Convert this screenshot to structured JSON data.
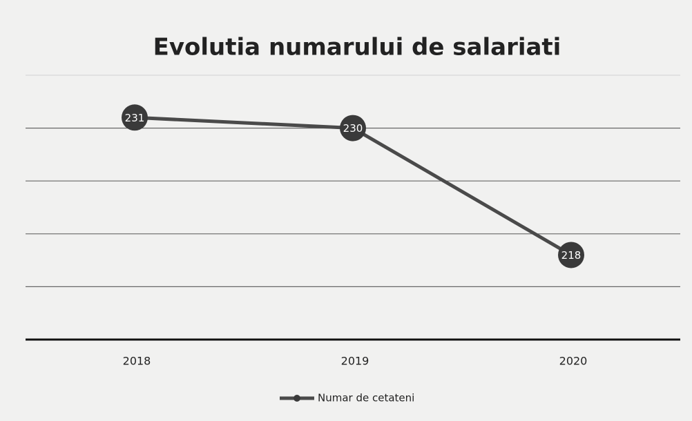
{
  "chart_data": {
    "type": "line",
    "title": "Evolutia numarului de salariati",
    "categories": [
      "2018",
      "2019",
      "2020"
    ],
    "series": [
      {
        "name": "Numar de cetateni",
        "color": "#4a4a4a",
        "values": [
          231,
          230,
          218
        ]
      }
    ],
    "ylim": [
      210,
      235
    ],
    "yticks": [
      210,
      215,
      220,
      225,
      230,
      235
    ],
    "grid": true
  }
}
